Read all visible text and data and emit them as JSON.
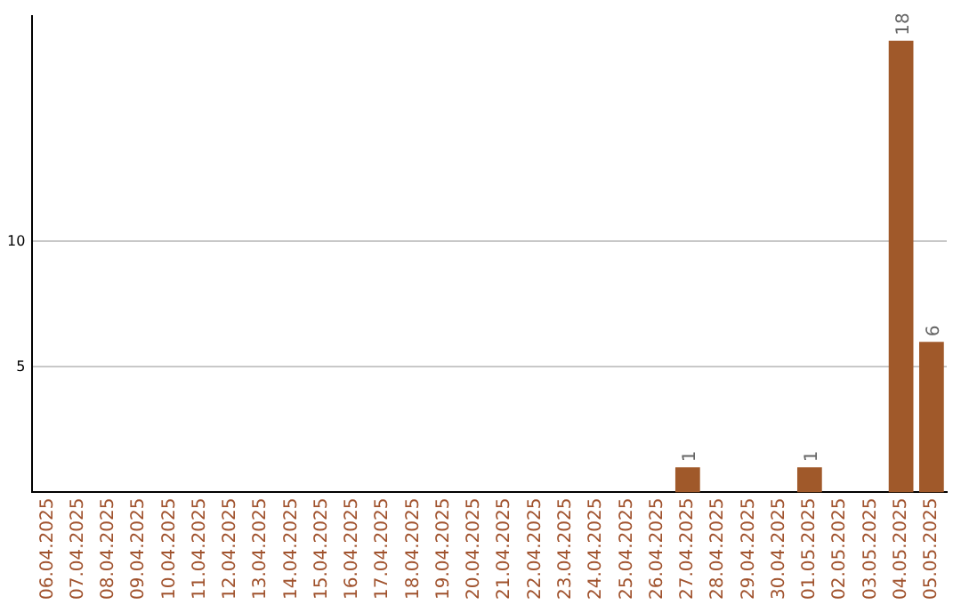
{
  "chart_data": {
    "type": "bar",
    "categories": [
      "06.04.2025",
      "07.04.2025",
      "08.04.2025",
      "09.04.2025",
      "10.04.2025",
      "11.04.2025",
      "12.04.2025",
      "13.04.2025",
      "14.04.2025",
      "15.04.2025",
      "16.04.2025",
      "17.04.2025",
      "18.04.2025",
      "19.04.2025",
      "20.04.2025",
      "21.04.2025",
      "22.04.2025",
      "23.04.2025",
      "24.04.2025",
      "25.04.2025",
      "26.04.2025",
      "27.04.2025",
      "28.04.2025",
      "29.04.2025",
      "30.04.2025",
      "01.05.2025",
      "02.05.2025",
      "03.05.2025",
      "04.05.2025",
      "05.05.2025"
    ],
    "values": [
      0,
      0,
      0,
      0,
      0,
      0,
      0,
      0,
      0,
      0,
      0,
      0,
      0,
      0,
      0,
      0,
      0,
      0,
      0,
      0,
      0,
      1,
      0,
      0,
      0,
      1,
      0,
      0,
      18,
      6
    ],
    "color": "#a0592a",
    "value_labels": [
      null,
      null,
      null,
      null,
      null,
      null,
      null,
      null,
      null,
      null,
      null,
      null,
      null,
      null,
      null,
      null,
      null,
      null,
      null,
      null,
      null,
      "1",
      null,
      null,
      null,
      "1",
      null,
      null,
      "18",
      "6"
    ],
    "ylim": [
      0,
      19
    ],
    "yticks": [
      5,
      10
    ],
    "grid": "y"
  }
}
